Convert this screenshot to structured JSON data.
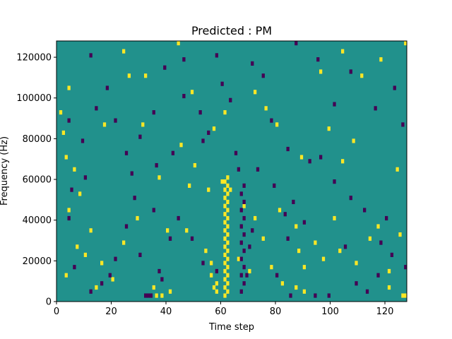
{
  "chart_data": {
    "type": "heatmap",
    "title": "Predicted : PM",
    "xlabel": "Time step",
    "ylabel": "Frequency (Hz)",
    "xlim": [
      0,
      128
    ],
    "ylim": [
      0,
      128000
    ],
    "x_ticks": [
      0,
      20,
      40,
      60,
      80,
      100,
      120
    ],
    "y_ticks": [
      0,
      20000,
      40000,
      60000,
      80000,
      100000,
      120000
    ],
    "grid": false,
    "legend": "none",
    "colors": {
      "background": "#21918c",
      "high": "#fde725",
      "low": "#440154"
    },
    "high_cells": [
      [
        61,
        2000
      ],
      [
        62,
        4000
      ],
      [
        61,
        6000
      ],
      [
        62,
        8000
      ],
      [
        61,
        10000
      ],
      [
        62,
        12000
      ],
      [
        61,
        14000
      ],
      [
        62,
        16000
      ],
      [
        61,
        18000
      ],
      [
        62,
        20000
      ],
      [
        61,
        22000
      ],
      [
        62,
        24000
      ],
      [
        61,
        26000
      ],
      [
        62,
        28000
      ],
      [
        61,
        30000
      ],
      [
        62,
        32000
      ],
      [
        61,
        34000
      ],
      [
        62,
        36000
      ],
      [
        61,
        38000
      ],
      [
        62,
        40000
      ],
      [
        61,
        42000
      ],
      [
        62,
        44000
      ],
      [
        61,
        46000
      ],
      [
        62,
        48000
      ],
      [
        61,
        50000
      ],
      [
        62,
        52000
      ],
      [
        61,
        54000
      ],
      [
        62,
        56000
      ],
      [
        61,
        58000
      ],
      [
        62,
        60000
      ],
      [
        60,
        58000
      ],
      [
        63,
        54000
      ],
      [
        57,
        6000
      ],
      [
        58,
        8000
      ],
      [
        56,
        12000
      ],
      [
        58,
        4000
      ],
      [
        36,
        2000
      ],
      [
        38,
        2000
      ],
      [
        35,
        6000
      ],
      [
        41,
        4000
      ],
      [
        126,
        2000
      ],
      [
        127,
        2000
      ],
      [
        121,
        6000
      ],
      [
        87,
        6000
      ],
      [
        90,
        4000
      ],
      [
        3,
        12000
      ],
      [
        7,
        26000
      ],
      [
        10,
        22000
      ],
      [
        4,
        44000
      ],
      [
        8,
        52000
      ],
      [
        6,
        64000
      ],
      [
        3,
        70000
      ],
      [
        2,
        82000
      ],
      [
        1,
        92000
      ],
      [
        4,
        104000
      ],
      [
        17,
        86000
      ],
      [
        26,
        110000
      ],
      [
        24,
        122000
      ],
      [
        44,
        126000
      ],
      [
        49,
        102000
      ],
      [
        45,
        76000
      ],
      [
        31,
        86000
      ],
      [
        32,
        110000
      ],
      [
        37,
        60000
      ],
      [
        40,
        34000
      ],
      [
        47,
        34000
      ],
      [
        54,
        24000
      ],
      [
        56,
        18000
      ],
      [
        72,
        40000
      ],
      [
        75,
        30000
      ],
      [
        81,
        44000
      ],
      [
        87,
        36000
      ],
      [
        94,
        28000
      ],
      [
        103,
        24000
      ],
      [
        109,
        18000
      ],
      [
        117,
        36000
      ],
      [
        125,
        32000
      ],
      [
        99,
        84000
      ],
      [
        104,
        68000
      ],
      [
        108,
        78000
      ],
      [
        111,
        110000
      ],
      [
        118,
        118000
      ],
      [
        127,
        126000
      ],
      [
        104,
        122000
      ],
      [
        96,
        112000
      ],
      [
        80,
        86000
      ],
      [
        76,
        94000
      ],
      [
        72,
        102000
      ],
      [
        61,
        92000
      ],
      [
        57,
        84000
      ],
      [
        50,
        66000
      ],
      [
        48,
        56000
      ],
      [
        55,
        54000
      ],
      [
        29,
        40000
      ],
      [
        24,
        28000
      ],
      [
        12,
        34000
      ],
      [
        16,
        18000
      ],
      [
        20,
        10000
      ],
      [
        14,
        6000
      ],
      [
        88,
        24000
      ],
      [
        90,
        16000
      ],
      [
        97,
        20000
      ],
      [
        101,
        40000
      ],
      [
        114,
        30000
      ],
      [
        121,
        14000
      ],
      [
        124,
        64000
      ],
      [
        89,
        70000
      ],
      [
        68,
        46000
      ],
      [
        66,
        20000
      ],
      [
        70,
        14000
      ],
      [
        78,
        16000
      ],
      [
        82,
        8000
      ]
    ],
    "low_cells": [
      [
        67,
        4000
      ],
      [
        68,
        8000
      ],
      [
        67,
        12000
      ],
      [
        68,
        16000
      ],
      [
        67,
        20000
      ],
      [
        68,
        24000
      ],
      [
        67,
        28000
      ],
      [
        68,
        32000
      ],
      [
        67,
        36000
      ],
      [
        68,
        40000
      ],
      [
        67,
        44000
      ],
      [
        68,
        48000
      ],
      [
        67,
        52000
      ],
      [
        68,
        56000
      ],
      [
        66,
        64000
      ],
      [
        70,
        26000
      ],
      [
        71,
        34000
      ],
      [
        69,
        12000
      ],
      [
        32,
        2000
      ],
      [
        33,
        2000
      ],
      [
        34,
        2000
      ],
      [
        38,
        10000
      ],
      [
        37,
        14000
      ],
      [
        30,
        22000
      ],
      [
        41,
        30000
      ],
      [
        35,
        44000
      ],
      [
        36,
        66000
      ],
      [
        27,
        62000
      ],
      [
        28,
        50000
      ],
      [
        25,
        36000
      ],
      [
        21,
        20000
      ],
      [
        19,
        12000
      ],
      [
        16,
        8000
      ],
      [
        12,
        4000
      ],
      [
        6,
        16000
      ],
      [
        4,
        40000
      ],
      [
        5,
        54000
      ],
      [
        9,
        78000
      ],
      [
        14,
        94000
      ],
      [
        12,
        120000
      ],
      [
        18,
        104000
      ],
      [
        21,
        88000
      ],
      [
        25,
        72000
      ],
      [
        35,
        92000
      ],
      [
        39,
        114000
      ],
      [
        46,
        100000
      ],
      [
        55,
        82000
      ],
      [
        63,
        98000
      ],
      [
        71,
        116000
      ],
      [
        78,
        88000
      ],
      [
        84,
        74000
      ],
      [
        92,
        68000
      ],
      [
        96,
        70000
      ],
      [
        101,
        58000
      ],
      [
        107,
        50000
      ],
      [
        112,
        44000
      ],
      [
        118,
        28000
      ],
      [
        122,
        22000
      ],
      [
        117,
        12000
      ],
      [
        113,
        4000
      ],
      [
        109,
        8000
      ],
      [
        99,
        2000
      ],
      [
        94,
        2000
      ],
      [
        85,
        2000
      ],
      [
        80,
        12000
      ],
      [
        84,
        30000
      ],
      [
        83,
        42000
      ],
      [
        86,
        48000
      ],
      [
        79,
        56000
      ],
      [
        73,
        64000
      ],
      [
        65,
        72000
      ],
      [
        53,
        78000
      ],
      [
        42,
        72000
      ],
      [
        30,
        80000
      ],
      [
        10,
        60000
      ],
      [
        4,
        88000
      ],
      [
        101,
        96000
      ],
      [
        116,
        94000
      ],
      [
        123,
        104000
      ],
      [
        126,
        86000
      ],
      [
        107,
        112000
      ],
      [
        95,
        118000
      ],
      [
        87,
        126000
      ],
      [
        75,
        110000
      ],
      [
        58,
        120000
      ],
      [
        46,
        118000
      ],
      [
        52,
        92000
      ],
      [
        60,
        106000
      ],
      [
        44,
        40000
      ],
      [
        49,
        30000
      ],
      [
        53,
        18000
      ],
      [
        58,
        14000
      ],
      [
        90,
        38000
      ],
      [
        105,
        26000
      ],
      [
        120,
        40000
      ],
      [
        127,
        16000
      ]
    ]
  }
}
